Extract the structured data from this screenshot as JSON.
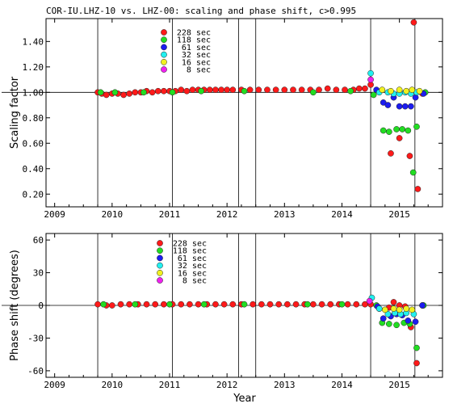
{
  "figure": {
    "title": "COR-IU.LHZ-10 vs. LHZ-00: scaling and phase shift, c>0.995",
    "xlabel": "Year"
  },
  "colors": {
    "228 sec": "#ff1a1a",
    "118 sec": "#22dd22",
    "61 sec": "#1c1cf0",
    "32 sec": "#22f0f0",
    "16 sec": "#f0f020",
    "8 sec": "#f020f0"
  },
  "chart_data": [
    {
      "type": "scatter",
      "name": "top",
      "ylabel": "Scaling factor",
      "xlim": [
        2008.85,
        2015.75
      ],
      "ylim": [
        0.1,
        1.58
      ],
      "x_ticks": [
        2009,
        2010,
        2011,
        2012,
        2013,
        2014,
        2015
      ],
      "y_ticks": [
        {
          "v": 0.2,
          "label": "0.20"
        },
        {
          "v": 0.4,
          "label": "0.40"
        },
        {
          "v": 0.6,
          "label": "0.60"
        },
        {
          "v": 0.8,
          "label": "0.80"
        },
        {
          "v": 1.0,
          "label": "1.00"
        },
        {
          "v": 1.2,
          "label": "1.20"
        },
        {
          "v": 1.4,
          "label": "1.40"
        }
      ],
      "ref_line": 1.0,
      "events": [
        2009.75,
        2011.05,
        2012.2,
        2012.5,
        2014.5,
        2015.27
      ],
      "legend": [
        {
          "label": "228 sec",
          "color": "#ff1a1a"
        },
        {
          "label": "118 sec",
          "color": "#22dd22"
        },
        {
          "label": "61 sec",
          "color": "#1c1cf0"
        },
        {
          "label": "32 sec",
          "color": "#22f0f0"
        },
        {
          "label": "16 sec",
          "color": "#f0f020"
        },
        {
          "label": "8 sec",
          "color": "#f020f0"
        }
      ],
      "series": [
        {
          "name": "228 sec",
          "color": "#ff1a1a",
          "points": [
            [
              2009.75,
              1.0
            ],
            [
              2009.82,
              0.99
            ],
            [
              2009.9,
              0.98
            ],
            [
              2010.0,
              0.99
            ],
            [
              2010.1,
              0.99
            ],
            [
              2010.2,
              0.98
            ],
            [
              2010.3,
              0.99
            ],
            [
              2010.4,
              1.0
            ],
            [
              2010.5,
              1.0
            ],
            [
              2010.6,
              1.01
            ],
            [
              2010.7,
              1.0
            ],
            [
              2010.8,
              1.01
            ],
            [
              2010.9,
              1.01
            ],
            [
              2011.0,
              1.01
            ],
            [
              2011.1,
              1.01
            ],
            [
              2011.2,
              1.02
            ],
            [
              2011.3,
              1.01
            ],
            [
              2011.4,
              1.02
            ],
            [
              2011.5,
              1.02
            ],
            [
              2011.6,
              1.02
            ],
            [
              2011.7,
              1.02
            ],
            [
              2011.8,
              1.02
            ],
            [
              2011.9,
              1.02
            ],
            [
              2012.0,
              1.02
            ],
            [
              2012.1,
              1.02
            ],
            [
              2012.25,
              1.02
            ],
            [
              2012.4,
              1.02
            ],
            [
              2012.55,
              1.02
            ],
            [
              2012.7,
              1.02
            ],
            [
              2012.85,
              1.02
            ],
            [
              2013.0,
              1.02
            ],
            [
              2013.15,
              1.02
            ],
            [
              2013.3,
              1.02
            ],
            [
              2013.45,
              1.02
            ],
            [
              2013.6,
              1.02
            ],
            [
              2013.75,
              1.03
            ],
            [
              2013.9,
              1.02
            ],
            [
              2014.05,
              1.02
            ],
            [
              2014.2,
              1.02
            ],
            [
              2014.3,
              1.03
            ],
            [
              2014.4,
              1.03
            ],
            [
              2014.5,
              1.06
            ],
            [
              2014.85,
              0.52
            ],
            [
              2015.0,
              0.64
            ],
            [
              2015.18,
              0.5
            ],
            [
              2015.25,
              1.55
            ],
            [
              2015.32,
              0.24
            ],
            [
              2015.4,
              0.99
            ]
          ]
        },
        {
          "name": "118 sec",
          "color": "#22dd22",
          "points": [
            [
              2009.8,
              1.0
            ],
            [
              2010.05,
              1.0
            ],
            [
              2010.55,
              1.0
            ],
            [
              2011.05,
              1.0
            ],
            [
              2011.55,
              1.01
            ],
            [
              2012.3,
              1.01
            ],
            [
              2013.5,
              1.0
            ],
            [
              2014.15,
              1.01
            ],
            [
              2014.55,
              0.98
            ],
            [
              2014.72,
              0.7
            ],
            [
              2014.82,
              0.69
            ],
            [
              2014.95,
              0.71
            ],
            [
              2015.05,
              0.71
            ],
            [
              2015.15,
              0.7
            ],
            [
              2015.24,
              0.37
            ],
            [
              2015.3,
              0.73
            ],
            [
              2015.45,
              1.0
            ]
          ]
        },
        {
          "name": "61 sec",
          "color": "#1c1cf0",
          "points": [
            [
              2014.6,
              1.02
            ],
            [
              2014.72,
              0.92
            ],
            [
              2014.8,
              0.9
            ],
            [
              2014.9,
              0.96
            ],
            [
              2015.0,
              0.89
            ],
            [
              2015.1,
              0.89
            ],
            [
              2015.2,
              0.89
            ],
            [
              2015.28,
              0.96
            ],
            [
              2015.42,
              0.99
            ]
          ]
        },
        {
          "name": "32 sec",
          "color": "#22f0f0",
          "points": [
            [
              2014.5,
              1.15
            ],
            [
              2014.65,
              1.0
            ],
            [
              2014.8,
              1.0
            ],
            [
              2014.9,
              0.99
            ],
            [
              2015.0,
              0.99
            ],
            [
              2015.1,
              1.0
            ],
            [
              2015.2,
              0.99
            ],
            [
              2015.3,
              1.0
            ]
          ]
        },
        {
          "name": "16 sec",
          "color": "#f0f020",
          "points": [
            [
              2014.7,
              1.02
            ],
            [
              2014.85,
              1.01
            ],
            [
              2015.0,
              1.02
            ],
            [
              2015.12,
              1.01
            ],
            [
              2015.22,
              1.02
            ],
            [
              2015.35,
              1.01
            ]
          ]
        },
        {
          "name": "8 sec",
          "color": "#f020f0",
          "points": [
            [
              2014.5,
              1.1
            ]
          ]
        }
      ]
    },
    {
      "type": "scatter",
      "name": "bottom",
      "ylabel": "Phase shift (degrees)",
      "xlim": [
        2008.85,
        2015.75
      ],
      "ylim": [
        -66,
        66
      ],
      "x_ticks": [
        2009,
        2010,
        2011,
        2012,
        2013,
        2014,
        2015
      ],
      "y_ticks": [
        {
          "v": -60,
          "label": "-60"
        },
        {
          "v": -30,
          "label": "-30"
        },
        {
          "v": 0,
          "label": "0"
        },
        {
          "v": 30,
          "label": "30"
        },
        {
          "v": 60,
          "label": "60"
        }
      ],
      "ref_line": 0,
      "events": [
        2009.75,
        2011.05,
        2012.2,
        2012.5,
        2014.5,
        2015.27
      ],
      "legend": [
        {
          "label": "228 sec",
          "color": "#ff1a1a"
        },
        {
          "label": "118 sec",
          "color": "#22dd22"
        },
        {
          "label": "61 sec",
          "color": "#1c1cf0"
        },
        {
          "label": "32 sec",
          "color": "#22f0f0"
        },
        {
          "label": "16 sec",
          "color": "#f0f020"
        },
        {
          "label": "8 sec",
          "color": "#f020f0"
        }
      ],
      "series": [
        {
          "name": "228 sec",
          "color": "#ff1a1a",
          "points": [
            [
              2009.75,
              1
            ],
            [
              2009.9,
              0
            ],
            [
              2010.0,
              0
            ],
            [
              2010.15,
              1
            ],
            [
              2010.3,
              1
            ],
            [
              2010.45,
              1
            ],
            [
              2010.6,
              1
            ],
            [
              2010.75,
              1
            ],
            [
              2010.9,
              1
            ],
            [
              2011.05,
              1
            ],
            [
              2011.2,
              1
            ],
            [
              2011.35,
              1
            ],
            [
              2011.5,
              1
            ],
            [
              2011.65,
              1
            ],
            [
              2011.8,
              1
            ],
            [
              2011.95,
              1
            ],
            [
              2012.1,
              1
            ],
            [
              2012.25,
              1
            ],
            [
              2012.45,
              1
            ],
            [
              2012.6,
              1
            ],
            [
              2012.75,
              1
            ],
            [
              2012.9,
              1
            ],
            [
              2013.05,
              1
            ],
            [
              2013.2,
              1
            ],
            [
              2013.35,
              1
            ],
            [
              2013.5,
              1
            ],
            [
              2013.65,
              1
            ],
            [
              2013.8,
              1
            ],
            [
              2013.95,
              1
            ],
            [
              2014.1,
              1
            ],
            [
              2014.25,
              1
            ],
            [
              2014.4,
              1
            ],
            [
              2014.5,
              1
            ],
            [
              2014.65,
              -3
            ],
            [
              2014.82,
              -2
            ],
            [
              2014.9,
              3
            ],
            [
              2015.0,
              0
            ],
            [
              2015.1,
              -1
            ],
            [
              2015.2,
              -20
            ],
            [
              2015.3,
              -53
            ],
            [
              2015.4,
              0
            ]
          ]
        },
        {
          "name": "118 sec",
          "color": "#22dd22",
          "points": [
            [
              2009.85,
              1
            ],
            [
              2010.4,
              1
            ],
            [
              2011.0,
              1
            ],
            [
              2011.6,
              1
            ],
            [
              2012.3,
              1
            ],
            [
              2013.4,
              1
            ],
            [
              2014.0,
              1
            ],
            [
              2014.6,
              0
            ],
            [
              2014.7,
              -16
            ],
            [
              2014.82,
              -17
            ],
            [
              2014.95,
              -18
            ],
            [
              2015.08,
              -16
            ],
            [
              2015.18,
              -17
            ],
            [
              2015.3,
              -39
            ],
            [
              2015.42,
              0
            ]
          ]
        },
        {
          "name": "61 sec",
          "color": "#1c1cf0",
          "points": [
            [
              2014.62,
              -1
            ],
            [
              2014.72,
              -12
            ],
            [
              2014.85,
              -10
            ],
            [
              2014.95,
              -8
            ],
            [
              2015.05,
              -9
            ],
            [
              2015.15,
              -14
            ],
            [
              2015.28,
              -15
            ],
            [
              2015.4,
              0
            ]
          ]
        },
        {
          "name": "32 sec",
          "color": "#22f0f0",
          "points": [
            [
              2014.52,
              7
            ],
            [
              2014.65,
              -3
            ],
            [
              2014.8,
              -8
            ],
            [
              2014.92,
              -7
            ],
            [
              2015.02,
              -8
            ],
            [
              2015.12,
              -7
            ],
            [
              2015.25,
              -8
            ]
          ]
        },
        {
          "name": "16 sec",
          "color": "#f0f020",
          "points": [
            [
              2014.75,
              -4
            ],
            [
              2014.9,
              -3
            ],
            [
              2015.0,
              -4
            ],
            [
              2015.12,
              -3
            ],
            [
              2015.22,
              -4
            ]
          ]
        },
        {
          "name": "8 sec",
          "color": "#f020f0",
          "points": [
            [
              2014.48,
              4
            ]
          ]
        }
      ]
    }
  ]
}
